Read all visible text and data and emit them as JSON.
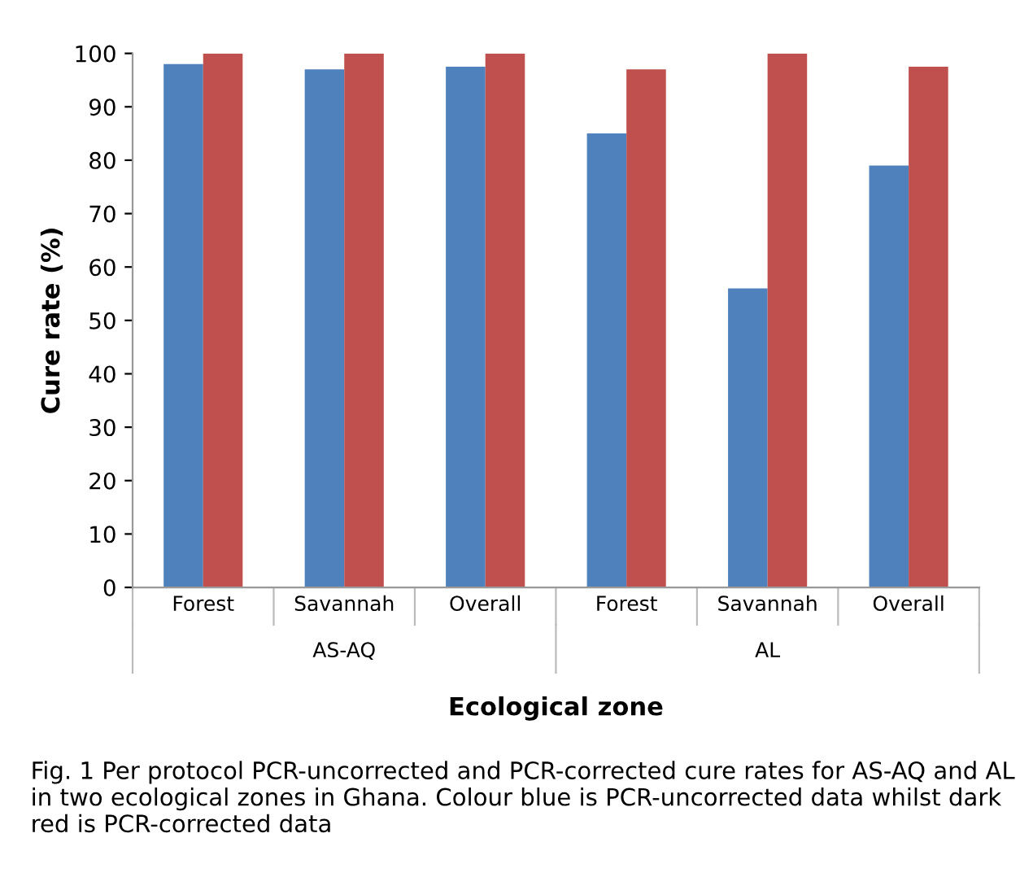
{
  "chart_data": {
    "type": "bar",
    "xlabel": "Ecological zone",
    "ylabel": "Cure rate (%)",
    "categories": [
      "Forest",
      "Savannah",
      "Overall",
      "Forest",
      "Savannah",
      "Overall"
    ],
    "series": [
      {
        "color": "#4f81bd",
        "values": [
          98,
          97,
          97.5,
          85,
          56,
          79
        ]
      },
      {
        "color": "#c0504d",
        "values": [
          100,
          100,
          100,
          97,
          100,
          97.5
        ]
      }
    ],
    "ylim": [
      0,
      100
    ],
    "yticks": [
      0,
      10,
      20,
      30,
      40,
      50,
      60,
      70,
      80,
      90,
      100
    ],
    "grid": false,
    "legend": false,
    "annotations": [
      "AS-AQ",
      "AL",
      "Fig. 1 Per protocol PCR-uncorrected and PCR-corrected cure rates for AS-AQ and AL in two ecological zones in Ghana. Colour blue is PCR-uncorrected data whilst dark red is PCR-corrected data"
    ]
  }
}
